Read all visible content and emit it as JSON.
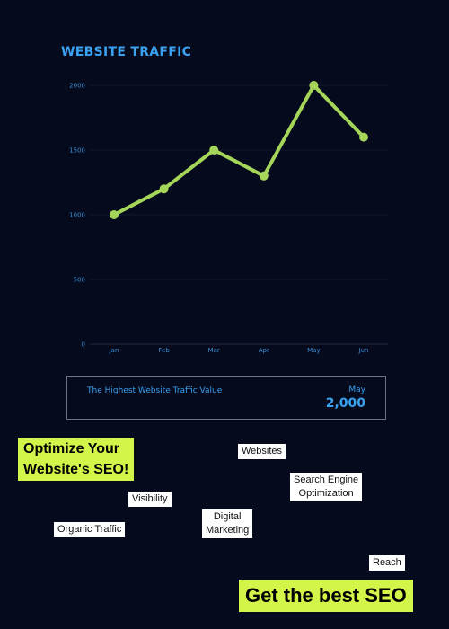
{
  "chart_data": {
    "type": "line",
    "title": "WEBSITE TRAFFIC",
    "categories": [
      "Jan",
      "Feb",
      "Mar",
      "Apr",
      "May",
      "Jun"
    ],
    "values": [
      1000,
      1200,
      1500,
      1300,
      2000,
      1600
    ],
    "yticks": [
      "0",
      "500",
      "1000",
      "1500",
      "2000"
    ],
    "ylim": [
      0,
      2000
    ],
    "line_color": "#a5d65a",
    "grid": true,
    "legend": "none"
  },
  "summary": {
    "label": "The Highest Website Traffic Value",
    "month": "May",
    "value": "2,000"
  },
  "promo": {
    "headline_line1": "Optimize Your",
    "headline_line2": "Website's SEO!",
    "cta": "Get the best SEO",
    "accent_color": "#d3f54a"
  },
  "tags": {
    "websites": "Websites",
    "search_engine_line1": "Search Engine",
    "search_engine_line2": "Optimization",
    "visibility": "Visibility",
    "organic": "Organic Traffic",
    "digital_line1": "Digital",
    "digital_line2": "Marketing",
    "reach": "Reach"
  }
}
